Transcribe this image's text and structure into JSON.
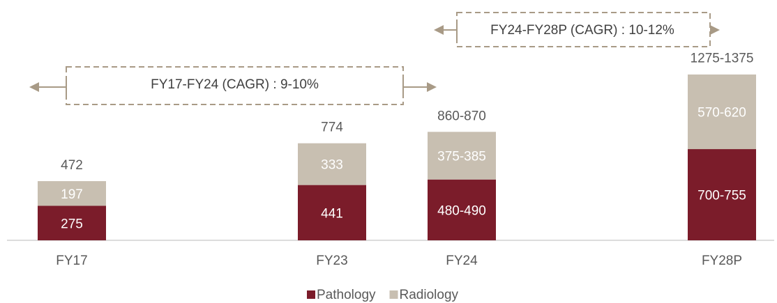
{
  "chart_data": {
    "type": "stacked_bar",
    "categories": [
      "FY17",
      "FY23",
      "FY24",
      "FY28P"
    ],
    "series": [
      {
        "name": "Pathology",
        "color": "#7b1c2a",
        "values": [
          275,
          441,
          485,
          727.5
        ],
        "value_labels": [
          "275",
          "441",
          "480-490",
          "700-755"
        ]
      },
      {
        "name": "Radiology",
        "color": "#c8bfb1",
        "values": [
          197,
          333,
          380,
          595
        ],
        "value_labels": [
          "197",
          "333",
          "375-385",
          "570-620"
        ]
      }
    ],
    "totals": [
      472,
      774,
      865,
      1325
    ],
    "total_labels": [
      "472",
      "774",
      "860-870",
      "1275-1375"
    ],
    "annotations": [
      "FY17-FY24 (CAGR) : 9-10%",
      "FY24-FY28P (CAGR) : 10-12%"
    ],
    "legend": "bottom"
  }
}
